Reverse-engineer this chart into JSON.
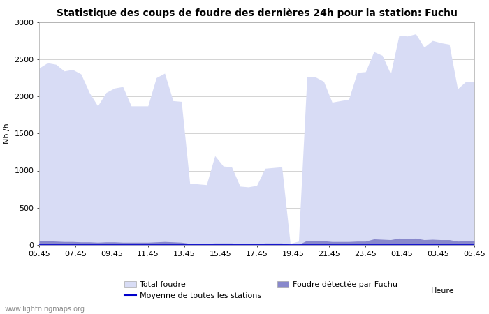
{
  "title": "Statistique des coups de foudre des dernières 24h pour la station: Fuchu",
  "xlabel": "Heure",
  "ylabel": "Nb /h",
  "watermark": "www.lightningmaps.org",
  "ylim": [
    0,
    3000
  ],
  "yticks": [
    0,
    500,
    1000,
    1500,
    2000,
    2500,
    3000
  ],
  "xtick_labels": [
    "05:45",
    "07:45",
    "09:45",
    "11:45",
    "13:45",
    "15:45",
    "17:45",
    "19:45",
    "21:45",
    "23:45",
    "01:45",
    "03:45",
    "05:45"
  ],
  "color_total": "#d8dcf5",
  "color_fuchu": "#8888cc",
  "color_mean_line": "#0000cc",
  "total_foudre": [
    2380,
    2450,
    2430,
    2340,
    2360,
    2300,
    2050,
    1870,
    2050,
    2110,
    2130,
    1870,
    1870,
    1870,
    2250,
    2310,
    1940,
    1930,
    830,
    820,
    810,
    1200,
    1060,
    1050,
    790,
    780,
    800,
    1030,
    1040,
    1050,
    20,
    50,
    2260,
    2260,
    2200,
    1920,
    1940,
    1960,
    2320,
    2330,
    2600,
    2550,
    2300,
    2820,
    2810,
    2840,
    2660,
    2750,
    2720,
    2700,
    2100,
    2200,
    2200
  ],
  "fuchu": [
    55,
    55,
    50,
    45,
    45,
    40,
    40,
    35,
    40,
    40,
    35,
    35,
    35,
    35,
    40,
    45,
    40,
    35,
    20,
    20,
    20,
    25,
    25,
    25,
    15,
    15,
    15,
    25,
    25,
    25,
    5,
    5,
    60,
    60,
    55,
    45,
    45,
    45,
    50,
    50,
    80,
    75,
    70,
    90,
    85,
    90,
    70,
    75,
    70,
    70,
    50,
    55,
    55
  ],
  "mean_line": [
    10,
    10,
    10,
    10,
    10,
    10,
    10,
    10,
    10,
    10,
    10,
    10,
    10,
    10,
    10,
    10,
    10,
    10,
    10,
    10,
    10,
    10,
    10,
    10,
    10,
    10,
    10,
    10,
    10,
    10,
    10,
    10,
    10,
    10,
    10,
    10,
    10,
    10,
    10,
    10,
    10,
    10,
    10,
    10,
    10,
    10,
    10,
    10,
    10,
    10,
    10,
    10,
    10
  ],
  "legend_labels": [
    "Total foudre",
    "Moyenne de toutes les stations",
    "Foudre détectée par Fuchu"
  ],
  "background_color": "#ffffff",
  "grid_color": "#cccccc",
  "title_fontsize": 10,
  "axis_fontsize": 8,
  "tick_fontsize": 8
}
